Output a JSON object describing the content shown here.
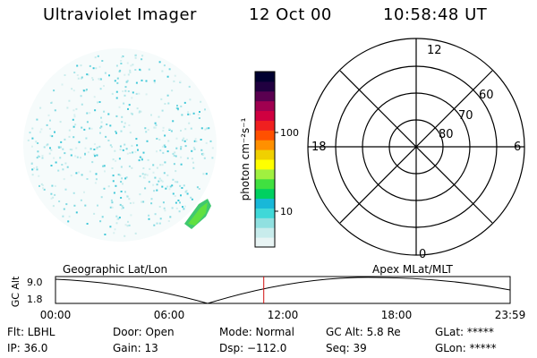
{
  "header": {
    "instrument": "Ultraviolet Imager",
    "date": "12 Oct 00",
    "time": "10:58:48 UT"
  },
  "colorbar": {
    "unit_label": "photon cm⁻²s⁻¹",
    "ticks": [
      "100",
      "10"
    ],
    "colors": [
      "#e8f4f4",
      "#c8ecec",
      "#90e0e0",
      "#40d8d8",
      "#18b8d8",
      "#00d060",
      "#40e040",
      "#a0f040",
      "#ffff00",
      "#f0d000",
      "#ff9000",
      "#ff5000",
      "#f02020",
      "#d00040",
      "#a00050",
      "#5a0050",
      "#200040",
      "#000030"
    ]
  },
  "polar_plot": {
    "mlt_labels": {
      "top": "12",
      "left": "18",
      "right": "6",
      "bottom": "0"
    },
    "lat_labels": [
      "60",
      "70",
      "80"
    ]
  },
  "timeline": {
    "y_axis_label": "GC Alt",
    "y_ticks": [
      "9.0",
      "1.8"
    ],
    "left_title": "Geographic Lat/Lon",
    "right_title": "Apex MLat/MLT",
    "x_ticks": [
      "00:00",
      "06:00",
      "12:00",
      "18:00",
      "23:59"
    ],
    "current_time_fraction": 0.458
  },
  "info": {
    "flt": "Flt: LBHL",
    "ip": "IP: 36.0",
    "door": "Door: Open",
    "gain": "Gain: 13",
    "mode": "Mode: Normal",
    "dsp": "Dsp: −112.0",
    "gc_alt": "GC Alt: 5.8 Re",
    "seq": "Seq: 39",
    "glat": "GLat: *****",
    "glon": "GLon: *****"
  }
}
